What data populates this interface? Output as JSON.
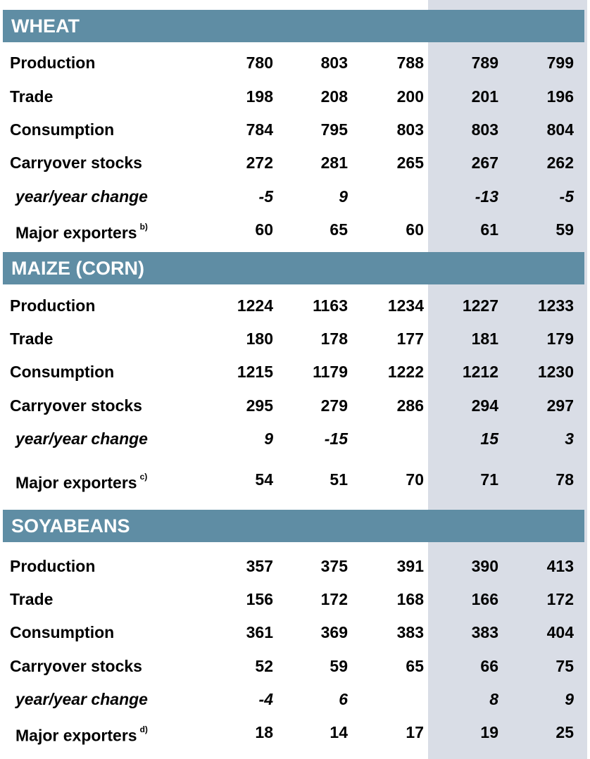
{
  "sections": [
    {
      "title": "WHEAT",
      "rows": [
        {
          "label": "Production",
          "values": [
            "780",
            "803",
            "788",
            "789",
            "799"
          ]
        },
        {
          "label": "Trade",
          "values": [
            "198",
            "208",
            "200",
            "201",
            "196"
          ]
        },
        {
          "label": "Consumption",
          "values": [
            "784",
            "795",
            "803",
            "803",
            "804"
          ]
        },
        {
          "label": "Carryover stocks",
          "values": [
            "272",
            "281",
            "265",
            "267",
            "262"
          ]
        },
        {
          "label": "year/year change",
          "values": [
            "-5",
            "9",
            "",
            "-13",
            "-5"
          ]
        },
        {
          "label": "Major exporters",
          "note": "b)",
          "values": [
            "60",
            "65",
            "60",
            "61",
            "59"
          ]
        }
      ]
    },
    {
      "title": "MAIZE (CORN)",
      "rows": [
        {
          "label": "Production",
          "values": [
            "1224",
            "1163",
            "1234",
            "1227",
            "1233"
          ]
        },
        {
          "label": "Trade",
          "values": [
            "180",
            "178",
            "177",
            "181",
            "179"
          ]
        },
        {
          "label": "Consumption",
          "values": [
            "1215",
            "1179",
            "1222",
            "1212",
            "1230"
          ]
        },
        {
          "label": "Carryover stocks",
          "values": [
            "295",
            "279",
            "286",
            "294",
            "297"
          ]
        },
        {
          "label": "year/year change",
          "values": [
            "9",
            "-15",
            "",
            "15",
            "3"
          ]
        },
        {
          "label": "Major exporters",
          "note": "c)",
          "values": [
            "54",
            "51",
            "70",
            "71",
            "78"
          ]
        }
      ]
    },
    {
      "title": "SOYABEANS",
      "rows": [
        {
          "label": "Production",
          "values": [
            "357",
            "375",
            "391",
            "390",
            "413"
          ]
        },
        {
          "label": "Trade",
          "values": [
            "156",
            "172",
            "168",
            "166",
            "172"
          ]
        },
        {
          "label": "Consumption",
          "values": [
            "361",
            "369",
            "383",
            "383",
            "404"
          ]
        },
        {
          "label": "Carryover stocks",
          "values": [
            "52",
            "59",
            "65",
            "66",
            "75"
          ]
        },
        {
          "label": "year/year change",
          "values": [
            "-4",
            "6",
            "",
            "8",
            "9"
          ]
        },
        {
          "label": "Major exporters",
          "note": "d)",
          "values": [
            "18",
            "14",
            "17",
            "19",
            "25"
          ]
        }
      ]
    }
  ],
  "colors": {
    "header_bg": "#5f8da4",
    "shade_bg": "#d9dde6"
  }
}
